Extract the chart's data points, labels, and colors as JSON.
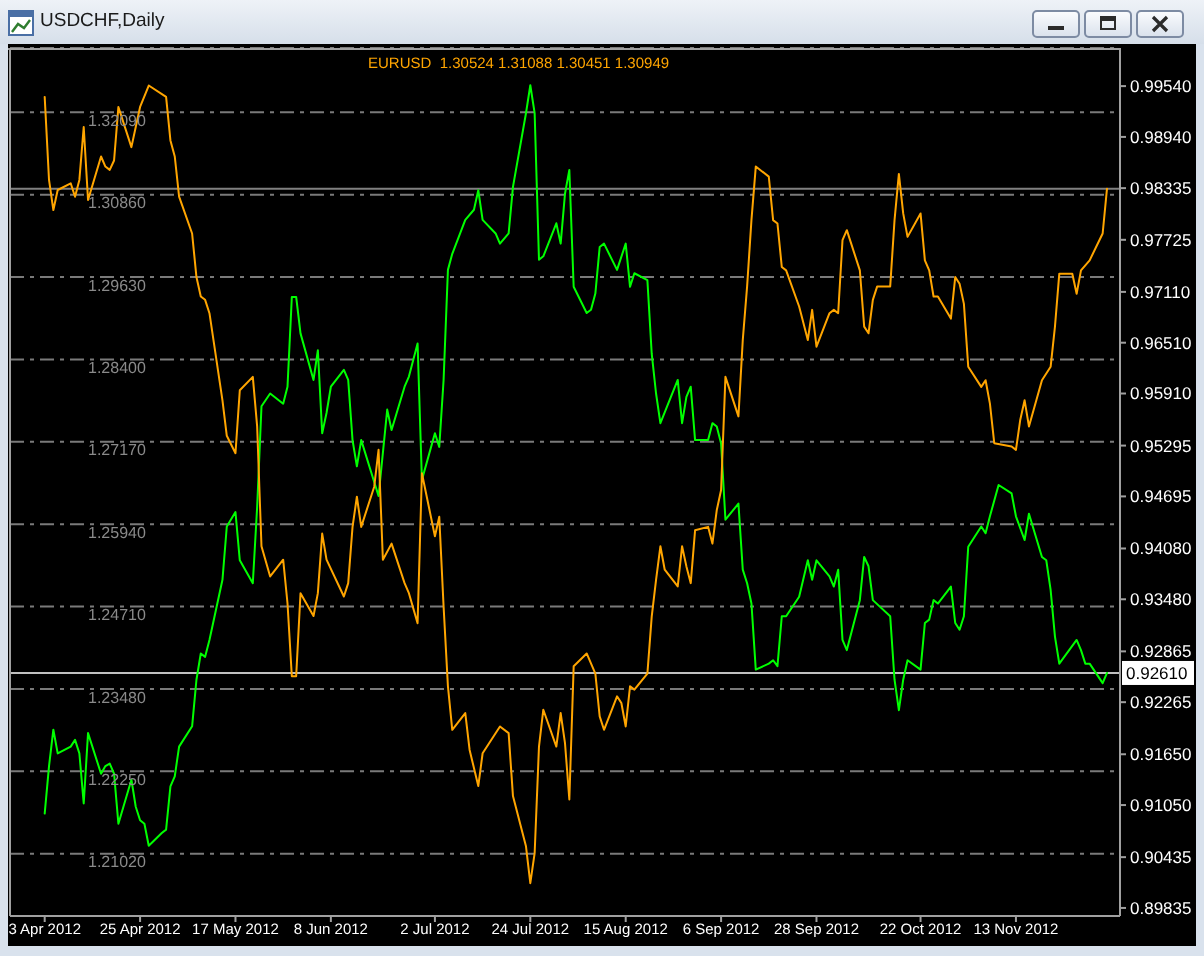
{
  "chart_data": {
    "type": "line",
    "title": "USDCHF,Daily",
    "annotations": [
      "1.30524 1.31088 1.30451 1.30949"
    ],
    "xlim": [
      "2012-03-26",
      "2012-12-07"
    ],
    "xticks": [
      {
        "value": "2012-04-03",
        "label": "3 Apr 2012"
      },
      {
        "value": "2012-04-25",
        "label": "25 Apr 2012"
      },
      {
        "value": "2012-05-17",
        "label": "17 May 2012"
      },
      {
        "value": "2012-06-08",
        "label": "8 Jun 2012"
      },
      {
        "value": "2012-07-02",
        "label": "2 Jul 2012"
      },
      {
        "value": "2012-07-24",
        "label": "24 Jul 2012"
      },
      {
        "value": "2012-08-15",
        "label": "15 Aug 2012"
      },
      {
        "value": "2012-09-06",
        "label": "6 Sep 2012"
      },
      {
        "value": "2012-09-28",
        "label": "28 Sep 2012"
      },
      {
        "value": "2012-10-22",
        "label": "22 Oct 2012"
      },
      {
        "value": "2012-11-13",
        "label": "13 Nov 2012"
      }
    ],
    "ylim": [
      1.2009,
      1.3305
    ],
    "yticks": [
      {
        "value": 1.2102,
        "label": "1.21020"
      },
      {
        "value": 1.2225,
        "label": "1.22250"
      },
      {
        "value": 1.2348,
        "label": "1.23480"
      },
      {
        "value": 1.2471,
        "label": "1.24710"
      },
      {
        "value": 1.2594,
        "label": "1.25940"
      },
      {
        "value": 1.2717,
        "label": "1.27170"
      },
      {
        "value": 1.284,
        "label": "1.28400"
      },
      {
        "value": 1.2963,
        "label": "1.29630"
      },
      {
        "value": 1.3086,
        "label": "1.30860"
      },
      {
        "value": 1.3209,
        "label": "1.32090"
      }
    ],
    "y2lim": [
      0.8974,
      0.9999
    ],
    "y2ticks": [
      0.89835,
      0.90435,
      {
        "value": 0.9105,
        "label": "0.91050"
      },
      {
        "value": 0.9165,
        "label": "0.91650"
      },
      0.92265,
      0.92865,
      {
        "value": 0.9348,
        "label": "0.93480"
      },
      {
        "value": 0.9408,
        "label": "0.94080"
      },
      0.94695,
      0.95295,
      {
        "value": 0.9591,
        "label": "0.95910"
      },
      {
        "value": 0.9651,
        "label": "0.96510"
      },
      {
        "value": 0.9711,
        "label": "0.97110"
      },
      0.97725,
      0.98335,
      {
        "value": 0.9894,
        "label": "0.98940"
      },
      {
        "value": 0.9954,
        "label": "0.99540"
      }
    ],
    "grid": "y",
    "ref_lines": [
      {
        "axis": "y2",
        "value": 0.9261,
        "label": "0.92610",
        "color": "#c0c0c0"
      },
      {
        "axis": "y",
        "value": 1.3095,
        "color": "#808080"
      }
    ],
    "series": [
      {
        "color": "#00ff00",
        "axis": "y2",
        "x": [
          "2012-04-03",
          "2012-04-04",
          "2012-04-05",
          "2012-04-06",
          "2012-04-09",
          "2012-04-10",
          "2012-04-11",
          "2012-04-12",
          "2012-04-13",
          "2012-04-16",
          "2012-04-17",
          "2012-04-18",
          "2012-04-19",
          "2012-04-20",
          "2012-04-23",
          "2012-04-24",
          "2012-04-25",
          "2012-04-26",
          "2012-04-27",
          "2012-04-30",
          "2012-05-01",
          "2012-05-02",
          "2012-05-03",
          "2012-05-04",
          "2012-05-07",
          "2012-05-08",
          "2012-05-09",
          "2012-05-10",
          "2012-05-11",
          "2012-05-14",
          "2012-05-15",
          "2012-05-17",
          "2012-05-18",
          "2012-05-21",
          "2012-05-22",
          "2012-05-23",
          "2012-05-25",
          "2012-05-28",
          "2012-05-29",
          "2012-05-30",
          "2012-05-31",
          "2012-06-01",
          "2012-06-04",
          "2012-06-05",
          "2012-06-06",
          "2012-06-07",
          "2012-06-08",
          "2012-06-11",
          "2012-06-12",
          "2012-06-13",
          "2012-06-14",
          "2012-06-15",
          "2012-06-19",
          "2012-06-21",
          "2012-06-22",
          "2012-06-25",
          "2012-06-26",
          "2012-06-28",
          "2012-06-29",
          "2012-07-02",
          "2012-07-03",
          "2012-07-04",
          "2012-07-05",
          "2012-07-06",
          "2012-07-09",
          "2012-07-11",
          "2012-07-12",
          "2012-07-13",
          "2012-07-16",
          "2012-07-17",
          "2012-07-19",
          "2012-07-20",
          "2012-07-23",
          "2012-07-24",
          "2012-07-25",
          "2012-07-26",
          "2012-07-27",
          "2012-07-30",
          "2012-07-31",
          "2012-08-01",
          "2012-08-02",
          "2012-08-03",
          "2012-08-06",
          "2012-08-07",
          "2012-08-08",
          "2012-08-09",
          "2012-08-10",
          "2012-08-13",
          "2012-08-15",
          "2012-08-16",
          "2012-08-17",
          "2012-08-20",
          "2012-08-21",
          "2012-08-22",
          "2012-08-23",
          "2012-08-27",
          "2012-08-28",
          "2012-08-29",
          "2012-08-30",
          "2012-08-31",
          "2012-09-03",
          "2012-09-04",
          "2012-09-05",
          "2012-09-06",
          "2012-09-07",
          "2012-09-10",
          "2012-09-11",
          "2012-09-12",
          "2012-09-13",
          "2012-09-14",
          "2012-09-17",
          "2012-09-18",
          "2012-09-19",
          "2012-09-20",
          "2012-09-21",
          "2012-09-24",
          "2012-09-26",
          "2012-09-27",
          "2012-09-28",
          "2012-10-01",
          "2012-10-02",
          "2012-10-03",
          "2012-10-04",
          "2012-10-05",
          "2012-10-08",
          "2012-10-09",
          "2012-10-10",
          "2012-10-11",
          "2012-10-15",
          "2012-10-16",
          "2012-10-17",
          "2012-10-18",
          "2012-10-19",
          "2012-10-22",
          "2012-10-23",
          "2012-10-24",
          "2012-10-25",
          "2012-10-26",
          "2012-10-29",
          "2012-10-30",
          "2012-10-31",
          "2012-11-01",
          "2012-11-02",
          "2012-11-05",
          "2012-11-06",
          "2012-11-07",
          "2012-11-09",
          "2012-11-12",
          "2012-11-13",
          "2012-11-15",
          "2012-11-16",
          "2012-11-19",
          "2012-11-20",
          "2012-11-21",
          "2012-11-22",
          "2012-11-23",
          "2012-11-27",
          "2012-11-28",
          "2012-11-29",
          "2012-11-30",
          "2012-12-03",
          "2012-12-04"
        ],
        "values": [
          0.9095,
          0.9151,
          0.9194,
          0.9166,
          0.9174,
          0.9182,
          0.9166,
          0.9107,
          0.919,
          0.9142,
          0.9151,
          0.9154,
          0.9142,
          0.9083,
          0.9135,
          0.9103,
          0.9087,
          0.9083,
          0.9057,
          0.9072,
          0.9076,
          0.9127,
          0.9139,
          0.9174,
          0.9198,
          0.9253,
          0.9284,
          0.928,
          0.93,
          0.9371,
          0.9434,
          0.9451,
          0.9394,
          0.9367,
          0.9457,
          0.9576,
          0.9591,
          0.9579,
          0.9599,
          0.9705,
          0.9705,
          0.9662,
          0.9607,
          0.9642,
          0.9544,
          0.9568,
          0.9599,
          0.9619,
          0.9607,
          0.9536,
          0.9505,
          0.9536,
          0.947,
          0.9572,
          0.9548,
          0.9599,
          0.9611,
          0.965,
          0.9489,
          0.9544,
          0.9528,
          0.9607,
          0.9737,
          0.9756,
          0.9796,
          0.9808,
          0.9831,
          0.9796,
          0.978,
          0.9768,
          0.978,
          0.9835,
          0.9922,
          0.9955,
          0.9922,
          0.9749,
          0.9753,
          0.9792,
          0.9768,
          0.9827,
          0.9855,
          0.9717,
          0.9686,
          0.969,
          0.9709,
          0.9764,
          0.9768,
          0.9737,
          0.9768,
          0.9717,
          0.9733,
          0.9725,
          0.9638,
          0.9591,
          0.9556,
          0.9607,
          0.9556,
          0.9587,
          0.9599,
          0.9536,
          0.9536,
          0.9556,
          0.9552,
          0.9532,
          0.9442,
          0.9461,
          0.9383,
          0.9367,
          0.9343,
          0.9265,
          0.9272,
          0.9276,
          0.9269,
          0.9328,
          0.9328,
          0.9351,
          0.9394,
          0.9371,
          0.9394,
          0.9375,
          0.9363,
          0.9383,
          0.93,
          0.9288,
          0.9347,
          0.9398,
          0.9387,
          0.9347,
          0.9328,
          0.9253,
          0.9217,
          0.9253,
          0.9276,
          0.9265,
          0.932,
          0.9324,
          0.9347,
          0.9343,
          0.9363,
          0.932,
          0.9312,
          0.9328,
          0.941,
          0.9434,
          0.9426,
          0.9446,
          0.9483,
          0.9473,
          0.9446,
          0.9418,
          0.9449,
          0.9398,
          0.9394,
          0.9359,
          0.9304,
          0.9272,
          0.93,
          0.9288,
          0.9272,
          0.9272,
          0.9249,
          0.9261
        ]
      },
      {
        "name": "EURUSD",
        "color": "#ffa500",
        "axis": "y",
        "x": [
          "2012-04-03",
          "2012-04-04",
          "2012-04-05",
          "2012-04-06",
          "2012-04-09",
          "2012-04-10",
          "2012-04-11",
          "2012-04-12",
          "2012-04-13",
          "2012-04-16",
          "2012-04-17",
          "2012-04-18",
          "2012-04-19",
          "2012-04-20",
          "2012-04-23",
          "2012-04-24",
          "2012-04-25",
          "2012-04-27",
          "2012-05-01",
          "2012-05-02",
          "2012-05-03",
          "2012-05-04",
          "2012-05-07",
          "2012-05-08",
          "2012-05-09",
          "2012-05-10",
          "2012-05-11",
          "2012-05-14",
          "2012-05-15",
          "2012-05-17",
          "2012-05-18",
          "2012-05-21",
          "2012-05-22",
          "2012-05-23",
          "2012-05-25",
          "2012-05-28",
          "2012-05-29",
          "2012-05-30",
          "2012-05-31",
          "2012-06-01",
          "2012-06-04",
          "2012-06-05",
          "2012-06-06",
          "2012-06-07",
          "2012-06-11",
          "2012-06-12",
          "2012-06-13",
          "2012-06-14",
          "2012-06-15",
          "2012-06-18",
          "2012-06-19",
          "2012-06-20",
          "2012-06-22",
          "2012-06-25",
          "2012-06-26",
          "2012-06-28",
          "2012-06-29",
          "2012-07-02",
          "2012-07-03",
          "2012-07-04",
          "2012-07-05",
          "2012-07-06",
          "2012-07-09",
          "2012-07-10",
          "2012-07-12",
          "2012-07-13",
          "2012-07-17",
          "2012-07-19",
          "2012-07-20",
          "2012-07-23",
          "2012-07-24",
          "2012-07-25",
          "2012-07-26",
          "2012-07-27",
          "2012-07-30",
          "2012-07-31",
          "2012-08-01",
          "2012-08-02",
          "2012-08-03",
          "2012-08-06",
          "2012-08-08",
          "2012-08-09",
          "2012-08-10",
          "2012-08-13",
          "2012-08-14",
          "2012-08-15",
          "2012-08-16",
          "2012-08-17",
          "2012-08-20",
          "2012-08-21",
          "2012-08-22",
          "2012-08-23",
          "2012-08-24",
          "2012-08-27",
          "2012-08-28",
          "2012-08-29",
          "2012-08-30",
          "2012-08-31",
          "2012-09-03",
          "2012-09-04",
          "2012-09-05",
          "2012-09-06",
          "2012-09-07",
          "2012-09-10",
          "2012-09-11",
          "2012-09-12",
          "2012-09-13",
          "2012-09-14",
          "2012-09-17",
          "2012-09-18",
          "2012-09-19",
          "2012-09-20",
          "2012-09-21",
          "2012-09-24",
          "2012-09-26",
          "2012-09-27",
          "2012-09-28",
          "2012-10-01",
          "2012-10-02",
          "2012-10-03",
          "2012-10-04",
          "2012-10-05",
          "2012-10-08",
          "2012-10-09",
          "2012-10-10",
          "2012-10-11",
          "2012-10-12",
          "2012-10-15",
          "2012-10-16",
          "2012-10-17",
          "2012-10-18",
          "2012-10-19",
          "2012-10-22",
          "2012-10-23",
          "2012-10-24",
          "2012-10-25",
          "2012-10-26",
          "2012-10-29",
          "2012-10-30",
          "2012-10-31",
          "2012-11-01",
          "2012-11-02",
          "2012-11-05",
          "2012-11-06",
          "2012-11-07",
          "2012-11-08",
          "2012-11-12",
          "2012-11-13",
          "2012-11-14",
          "2012-11-15",
          "2012-11-16",
          "2012-11-19",
          "2012-11-20",
          "2012-11-21",
          "2012-11-22",
          "2012-11-23",
          "2012-11-26",
          "2012-11-27",
          "2012-11-28",
          "2012-11-30",
          "2012-12-03",
          "2012-12-04"
        ],
        "values": [
          1.3232,
          1.3108,
          1.3063,
          1.3093,
          1.3103,
          1.3083,
          1.3108,
          1.3187,
          1.3078,
          1.3143,
          1.3128,
          1.3123,
          1.3137,
          1.3217,
          1.3157,
          1.3187,
          1.3217,
          1.3249,
          1.3232,
          1.3167,
          1.3143,
          1.3083,
          1.3028,
          1.2963,
          1.2934,
          1.2929,
          1.2909,
          1.2779,
          1.2726,
          1.27,
          1.2794,
          1.2814,
          1.274,
          1.2561,
          1.2516,
          1.2541,
          1.2476,
          1.2367,
          1.2367,
          1.2491,
          1.2457,
          1.2491,
          1.258,
          1.2541,
          1.2486,
          1.2506,
          1.259,
          1.2635,
          1.259,
          1.265,
          1.2705,
          1.2541,
          1.2565,
          1.2506,
          1.2491,
          1.2446,
          1.267,
          1.2576,
          1.2605,
          1.2471,
          1.2352,
          1.2287,
          1.2312,
          1.2257,
          1.2203,
          1.2252,
          1.2292,
          1.2282,
          1.2188,
          1.2113,
          1.2058,
          1.2103,
          1.2262,
          1.2317,
          1.2262,
          1.2312,
          1.2267,
          1.2183,
          1.2382,
          1.2401,
          1.2371,
          1.2307,
          1.2287,
          1.2337,
          1.2327,
          1.2292,
          1.2352,
          1.2347,
          1.2371,
          1.2456,
          1.2511,
          1.2561,
          1.2526,
          1.2501,
          1.2561,
          1.2531,
          1.2506,
          1.2585,
          1.259,
          1.2565,
          1.2615,
          1.2645,
          1.2814,
          1.2755,
          1.2869,
          1.2949,
          1.3048,
          1.3128,
          1.3113,
          1.3048,
          1.3043,
          1.2978,
          1.2973,
          1.2919,
          1.2869,
          1.2914,
          1.2859,
          1.2909,
          1.2914,
          1.2909,
          1.3018,
          1.3033,
          1.2973,
          1.2889,
          1.2879,
          1.2929,
          1.2949,
          1.2949,
          1.3048,
          1.3117,
          1.3058,
          1.3023,
          1.3058,
          1.2988,
          1.2973,
          1.2934,
          1.2934,
          1.2901,
          1.2963,
          1.2953,
          1.2923,
          1.2829,
          1.2799,
          1.2809,
          1.2774,
          1.2715,
          1.271,
          1.2705,
          1.275,
          1.2779,
          1.274,
          1.2809,
          1.2819,
          1.2829,
          1.2889,
          1.2968,
          1.2968,
          1.2938,
          1.2973,
          1.2988,
          1.3028,
          1.3095
        ]
      }
    ]
  }
}
